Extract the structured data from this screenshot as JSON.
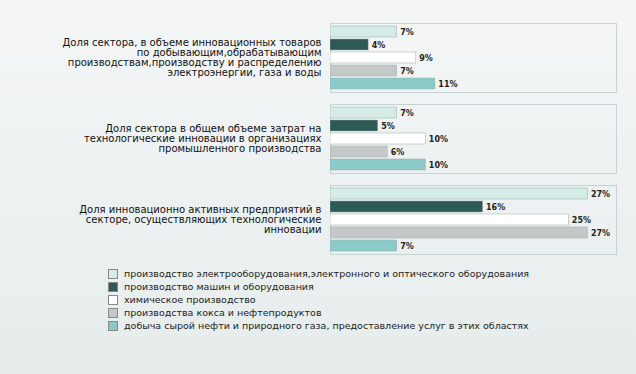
{
  "chart_data": {
    "type": "bar",
    "orientation": "horizontal",
    "categories": [
      "Доля сектора, в объеме инновационных товаров по добывающим,обрабатывающим производствам,производству и распределению электроэнергии, газа и воды",
      "Доля сектора в общем объеме затрат на технологические инновации в организациях промышленного производства",
      "Доля инновационно активных предприятий в секторе, осуществляющих технологические инновации"
    ],
    "series": [
      {
        "name": "производство электрооборудования,электронного и оптического оборудования",
        "color": "#d4ebe6",
        "values": [
          7,
          7,
          27
        ],
        "value_labels": [
          "7%",
          "7%",
          "27%"
        ]
      },
      {
        "name": "производство машин и оборудования",
        "color": "#2d5a55",
        "values": [
          4,
          5,
          16
        ],
        "value_labels": [
          "4%",
          "5%",
          "16%"
        ]
      },
      {
        "name": "химическое производство",
        "color": "#ffffff",
        "values": [
          9,
          10,
          25
        ],
        "value_labels": [
          "9%",
          "10%",
          "25%"
        ]
      },
      {
        "name": "производства кокса и нефтепродуктов",
        "color": "#c6c8c8",
        "values": [
          7,
          6,
          27
        ],
        "value_labels": [
          "7%",
          "6%",
          "27%"
        ]
      },
      {
        "name": "добыча сырой нефти и природного газа, предоставление услуг в этих областях",
        "color": "#8ccaca",
        "values": [
          11,
          10,
          7
        ],
        "value_labels": [
          "11%",
          "10%",
          "7%"
        ]
      }
    ],
    "xlim": [
      0,
      30
    ],
    "data_labels": true,
    "legend": "bottom",
    "tick_labels": "y",
    "grid": false
  }
}
